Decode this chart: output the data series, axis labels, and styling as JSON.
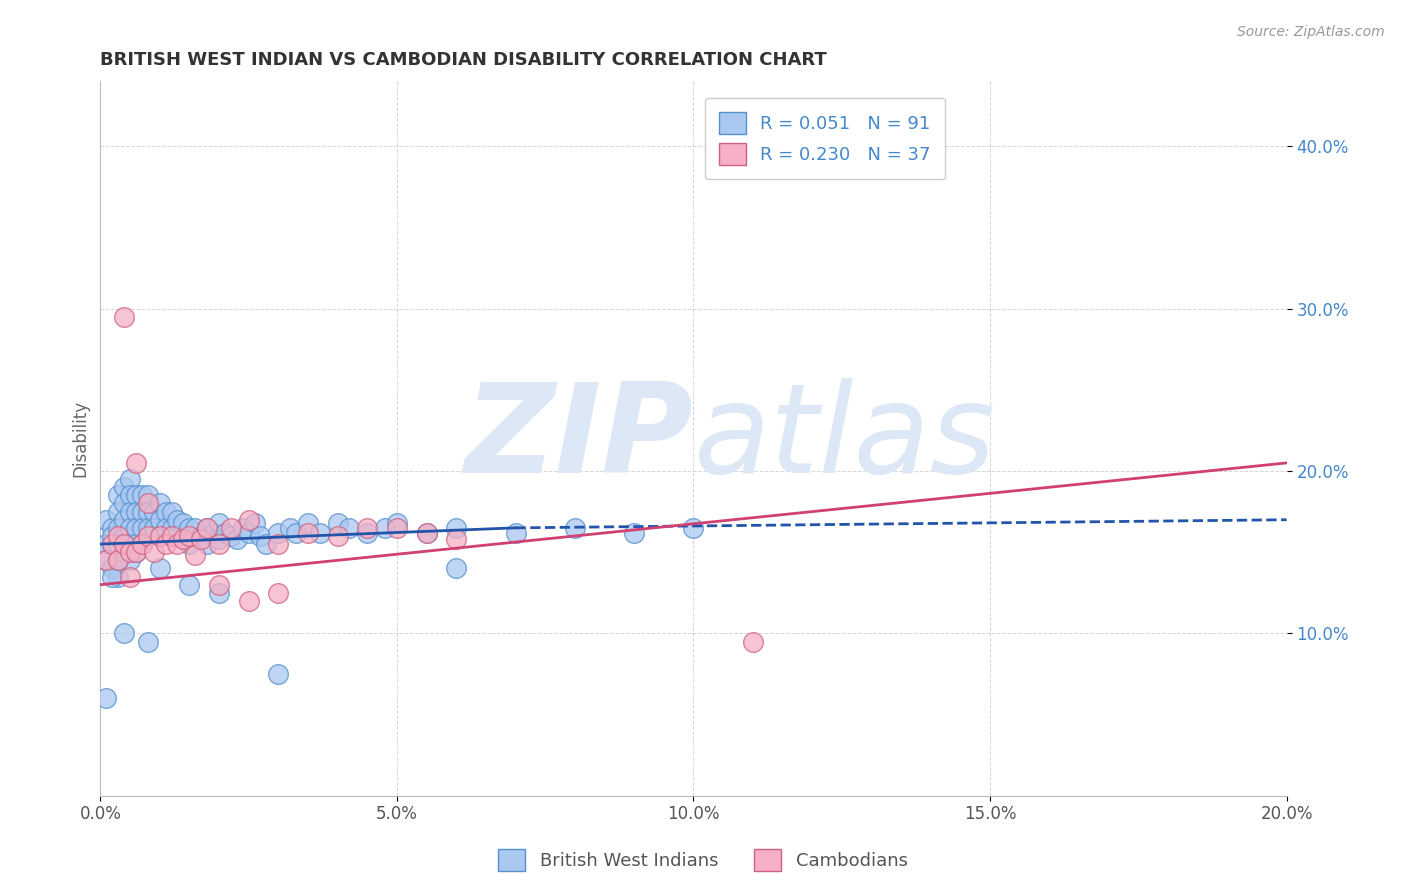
{
  "title": "BRITISH WEST INDIAN VS CAMBODIAN DISABILITY CORRELATION CHART",
  "source": "Source: ZipAtlas.com",
  "ylabel": "Disability",
  "xlim": [
    0.0,
    0.2
  ],
  "ylim": [
    0.0,
    0.44
  ],
  "xticks": [
    0.0,
    0.05,
    0.1,
    0.15,
    0.2
  ],
  "xtick_labels": [
    "0.0%",
    "5.0%",
    "10.0%",
    "15.0%",
    "20.0%"
  ],
  "yticks": [
    0.1,
    0.2,
    0.3,
    0.4
  ],
  "ytick_labels": [
    "10.0%",
    "20.0%",
    "30.0%",
    "40.0%"
  ],
  "bwi_R": 0.051,
  "bwi_N": 91,
  "cam_R": 0.23,
  "cam_N": 37,
  "bwi_color": "#aac8f0",
  "bwi_edge_color": "#5590d0",
  "cam_color": "#f5b0c5",
  "cam_edge_color": "#d06080",
  "bwi_line_color": "#2255aa",
  "cam_line_color": "#d04070",
  "watermark_color": "#dce8f5",
  "background_color": "#ffffff",
  "grid_color": "#cccccc",
  "title_color": "#333333",
  "axis_label_color": "#666666",
  "tick_color": "#4488cc",
  "source_color": "#999999",
  "bwi_x": [
    0.001,
    0.001,
    0.001,
    0.002,
    0.002,
    0.002,
    0.002,
    0.003,
    0.003,
    0.003,
    0.003,
    0.003,
    0.003,
    0.004,
    0.004,
    0.004,
    0.004,
    0.004,
    0.005,
    0.005,
    0.005,
    0.005,
    0.005,
    0.005,
    0.006,
    0.006,
    0.006,
    0.006,
    0.007,
    0.007,
    0.007,
    0.007,
    0.008,
    0.008,
    0.008,
    0.009,
    0.009,
    0.01,
    0.01,
    0.01,
    0.011,
    0.011,
    0.012,
    0.012,
    0.013,
    0.013,
    0.014,
    0.015,
    0.015,
    0.016,
    0.017,
    0.018,
    0.018,
    0.019,
    0.02,
    0.02,
    0.021,
    0.022,
    0.023,
    0.024,
    0.025,
    0.026,
    0.027,
    0.028,
    0.03,
    0.032,
    0.033,
    0.035,
    0.037,
    0.04,
    0.042,
    0.045,
    0.048,
    0.05,
    0.055,
    0.06,
    0.07,
    0.08,
    0.09,
    0.1,
    0.001,
    0.002,
    0.003,
    0.004,
    0.006,
    0.008,
    0.01,
    0.015,
    0.02,
    0.03,
    0.06
  ],
  "bwi_y": [
    0.17,
    0.155,
    0.145,
    0.165,
    0.155,
    0.14,
    0.16,
    0.185,
    0.175,
    0.165,
    0.155,
    0.145,
    0.135,
    0.19,
    0.18,
    0.17,
    0.16,
    0.15,
    0.195,
    0.185,
    0.175,
    0.165,
    0.155,
    0.145,
    0.185,
    0.175,
    0.165,
    0.155,
    0.185,
    0.175,
    0.165,
    0.155,
    0.185,
    0.175,
    0.165,
    0.175,
    0.165,
    0.18,
    0.17,
    0.16,
    0.175,
    0.165,
    0.175,
    0.165,
    0.17,
    0.16,
    0.168,
    0.165,
    0.155,
    0.165,
    0.16,
    0.165,
    0.155,
    0.162,
    0.168,
    0.158,
    0.162,
    0.16,
    0.158,
    0.165,
    0.162,
    0.168,
    0.16,
    0.155,
    0.162,
    0.165,
    0.162,
    0.168,
    0.162,
    0.168,
    0.165,
    0.162,
    0.165,
    0.168,
    0.162,
    0.165,
    0.162,
    0.165,
    0.162,
    0.165,
    0.06,
    0.135,
    0.145,
    0.1,
    0.15,
    0.095,
    0.14,
    0.13,
    0.125,
    0.075,
    0.14
  ],
  "cam_x": [
    0.001,
    0.002,
    0.003,
    0.003,
    0.004,
    0.005,
    0.005,
    0.006,
    0.007,
    0.008,
    0.009,
    0.01,
    0.011,
    0.012,
    0.013,
    0.014,
    0.015,
    0.016,
    0.017,
    0.018,
    0.02,
    0.022,
    0.025,
    0.03,
    0.035,
    0.04,
    0.045,
    0.05,
    0.055,
    0.06,
    0.004,
    0.006,
    0.008,
    0.11,
    0.02,
    0.025,
    0.03
  ],
  "cam_y": [
    0.145,
    0.155,
    0.145,
    0.16,
    0.155,
    0.15,
    0.135,
    0.15,
    0.155,
    0.16,
    0.15,
    0.16,
    0.155,
    0.16,
    0.155,
    0.158,
    0.16,
    0.148,
    0.158,
    0.165,
    0.155,
    0.165,
    0.17,
    0.155,
    0.162,
    0.16,
    0.165,
    0.165,
    0.162,
    0.158,
    0.295,
    0.205,
    0.18,
    0.095,
    0.13,
    0.12,
    0.125
  ],
  "bwi_trend_x": [
    0.0,
    0.07,
    0.2
  ],
  "bwi_trend_y": [
    0.155,
    0.165,
    0.17
  ],
  "cam_trend_x": [
    0.0,
    0.2
  ],
  "cam_trend_y": [
    0.13,
    0.205
  ]
}
